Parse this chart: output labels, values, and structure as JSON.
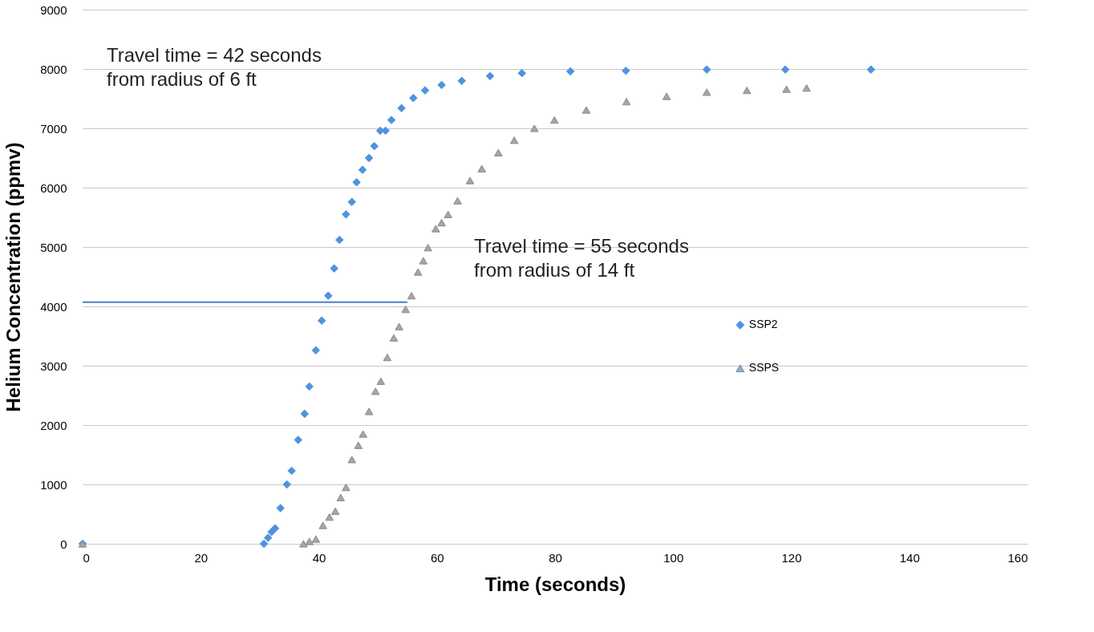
{
  "chart_data": {
    "type": "scatter",
    "xlabel": "Time (seconds)",
    "ylabel": "Helium Concentration (ppmv)",
    "xlim": [
      0,
      160
    ],
    "xticks": [
      0,
      20,
      40,
      60,
      80,
      100,
      120,
      140,
      160
    ],
    "ylim": [
      0,
      9000
    ],
    "yticks": [
      0,
      1000,
      2000,
      3000,
      4000,
      5000,
      6000,
      7000,
      8000,
      9000
    ],
    "grid": "y",
    "legend": "right",
    "annotations": [
      "Travel time = 42 seconds\nfrom radius  of 6 ft",
      "Travel time = 55 seconds\nfrom radius  of 14 ft"
    ],
    "series": [
      {
        "name": "SSP2",
        "color": "#4f93e0",
        "marker": "diamond",
        "x": [
          0,
          30.7,
          31.4,
          32,
          32.6,
          33.5,
          34.6,
          35.4,
          36.5,
          37.6,
          38.4,
          39.5,
          40.5,
          41.6,
          42.6,
          43.5,
          44.6,
          45.6,
          46.4,
          47.4,
          48.5,
          49.4,
          50.4,
          51.3,
          52.3,
          54,
          56,
          58,
          60.8,
          64.2,
          69,
          74.4,
          82.6,
          92,
          105.7,
          119,
          133.5
        ],
        "values": [
          0,
          0,
          100,
          200,
          260,
          600,
          1000,
          1230,
          1750,
          2190,
          2650,
          3260,
          3760,
          4180,
          4640,
          5120,
          5550,
          5760,
          6090,
          6300,
          6500,
          6700,
          6960,
          6960,
          7140,
          7340,
          7510,
          7640,
          7730,
          7800,
          7880,
          7930,
          7960,
          7970,
          7990,
          7990,
          7990
        ]
      },
      {
        "name": "SSPS",
        "color": "#a6a6a6",
        "marker": "triangle",
        "x": [
          0,
          37.4,
          38.4,
          39.5,
          40.7,
          41.8,
          42.8,
          43.7,
          44.6,
          45.6,
          46.7,
          47.5,
          48.5,
          49.6,
          50.5,
          51.6,
          52.7,
          53.6,
          54.7,
          55.7,
          56.8,
          57.7,
          58.5,
          59.8,
          60.8,
          61.9,
          63.5,
          65.6,
          67.6,
          70.4,
          73.1,
          76.5,
          79.9,
          85.3,
          92.1,
          98.9,
          105.7,
          112.5,
          119.2,
          122.6
        ],
        "values": [
          0,
          0,
          40,
          80,
          310,
          450,
          550,
          780,
          950,
          1420,
          1660,
          1850,
          2230,
          2570,
          2740,
          3140,
          3470,
          3660,
          3950,
          4180,
          4580,
          4770,
          4990,
          5310,
          5410,
          5550,
          5780,
          6120,
          6320,
          6590,
          6800,
          7000,
          7140,
          7310,
          7450,
          7540,
          7610,
          7640,
          7660,
          7680
        ]
      },
      {
        "type": "line",
        "color": "#4a7fc8",
        "x": [
          0,
          40,
          55
        ],
        "values": [
          4070,
          4070,
          4070
        ]
      }
    ]
  }
}
